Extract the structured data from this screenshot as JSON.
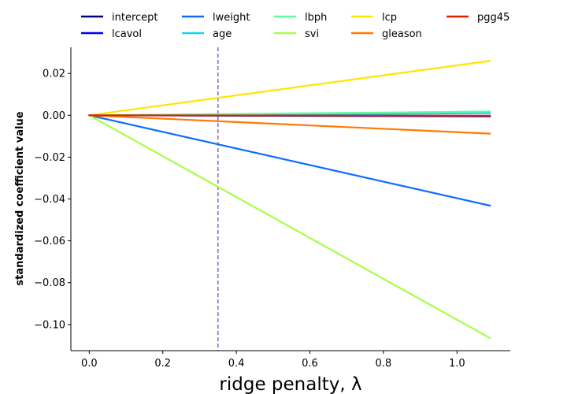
{
  "chart_data": {
    "type": "line",
    "title": "",
    "xlabel": "ridge penalty, λ",
    "ylabel": "standardized coefficient value",
    "xlim": [
      -0.05,
      1.145
    ],
    "ylim": [
      -0.1125,
      0.0325
    ],
    "xticks": [
      {
        "value": 0.0,
        "label": "0.0"
      },
      {
        "value": 0.2,
        "label": "0.2"
      },
      {
        "value": 0.4,
        "label": "0.4"
      },
      {
        "value": 0.6,
        "label": "0.6"
      },
      {
        "value": 0.8,
        "label": "0.8"
      },
      {
        "value": 1.0,
        "label": "1.0"
      }
    ],
    "yticks": [
      {
        "value": 0.02,
        "label": "0.02"
      },
      {
        "value": 0.0,
        "label": "0.00"
      },
      {
        "value": -0.02,
        "label": "−0.02"
      },
      {
        "value": -0.04,
        "label": "−0.04"
      },
      {
        "value": -0.06,
        "label": "−0.06"
      },
      {
        "value": -0.08,
        "label": "−0.08"
      },
      {
        "value": -0.1,
        "label": "−0.10"
      }
    ],
    "grid": false,
    "legend_position": "top",
    "vline": {
      "x": 0.35,
      "color": "#8c6bc8",
      "style": "dashed"
    },
    "x": [
      0.0,
      1.09
    ],
    "series": [
      {
        "name": "intercept",
        "color": "#00007f",
        "values": [
          0.0,
          -0.0005
        ]
      },
      {
        "name": "lcavol",
        "color": "#0000f0",
        "values": [
          0.0,
          -0.0003
        ]
      },
      {
        "name": "lweight",
        "color": "#0d6cff",
        "values": [
          0.0,
          -0.0432
        ]
      },
      {
        "name": "age",
        "color": "#1ad3f5",
        "values": [
          0.0,
          0.001
        ]
      },
      {
        "name": "lbph",
        "color": "#5effa0",
        "values": [
          0.0,
          0.0018
        ]
      },
      {
        "name": "svi",
        "color": "#a7ff49",
        "values": [
          0.0,
          -0.1065
        ]
      },
      {
        "name": "lcp",
        "color": "#ffe500",
        "values": [
          0.0,
          0.026
        ]
      },
      {
        "name": "gleason",
        "color": "#ff7a00",
        "values": [
          0.0,
          -0.0088
        ]
      },
      {
        "name": "pgg45",
        "color": "#e41d00",
        "values": [
          0.0,
          -0.0002
        ]
      }
    ]
  }
}
